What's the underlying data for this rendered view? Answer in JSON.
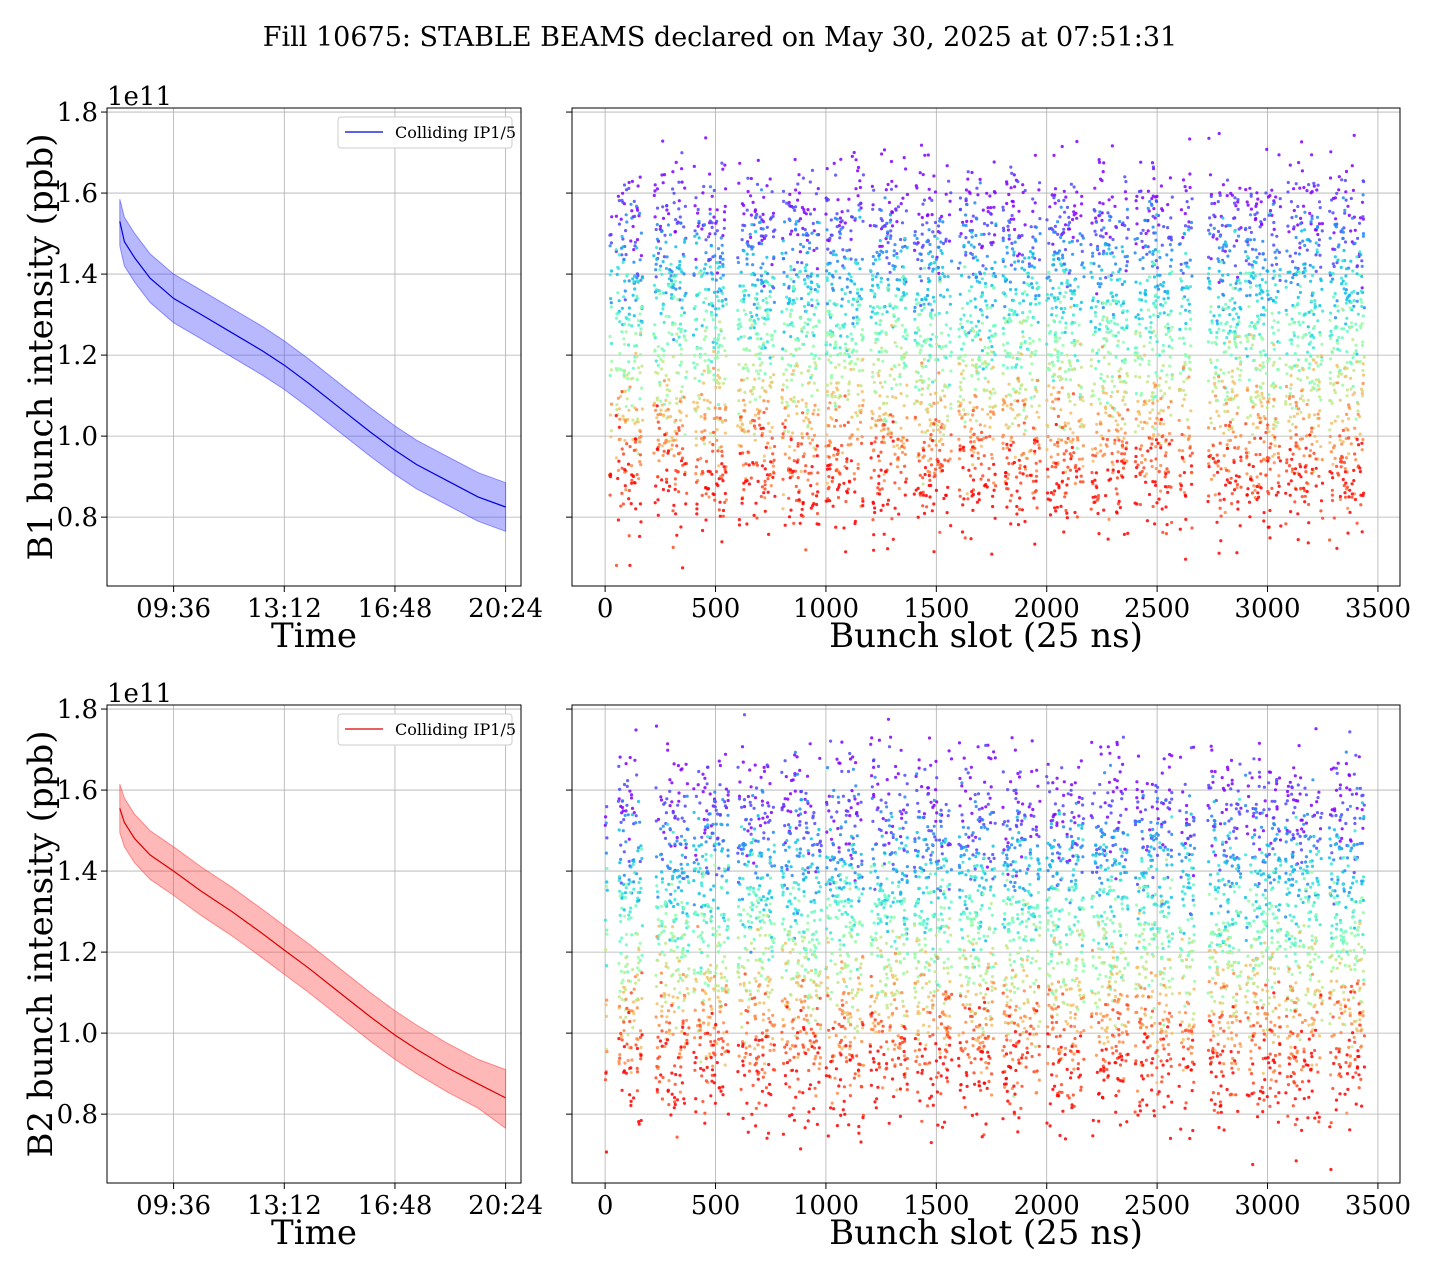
{
  "title": "Fill 10675: STABLE BEAMS declared on May 30, 2025 at 07:51:31",
  "chart_data": [
    {
      "type": "line",
      "panel": "B1 intensity vs time",
      "xlabel": "Time",
      "ylabel": "B1 bunch intensity (ppb)",
      "y_offset_label": "1e11",
      "x_ticks": [
        "09:36",
        "13:12",
        "16:48",
        "20:24"
      ],
      "y_ticks": [
        "0.8",
        "1.0",
        "1.2",
        "1.4",
        "1.6",
        "1.8"
      ],
      "xlim": [
        "07:26",
        "20:54"
      ],
      "ylim": [
        0.63,
        1.81
      ],
      "grid": true,
      "legend": {
        "position": "top-right",
        "entries": [
          "Colliding IP1/5"
        ]
      },
      "color": "#0000dd",
      "band_color": "#3333ff",
      "series": [
        {
          "name": "Colliding IP1/5",
          "x": [
            "07:51",
            "08:00",
            "08:20",
            "08:50",
            "09:36",
            "10:30",
            "11:30",
            "12:30",
            "13:12",
            "14:00",
            "15:00",
            "16:00",
            "16:48",
            "17:30",
            "18:30",
            "19:30",
            "20:24"
          ],
          "y": [
            1.53,
            1.48,
            1.44,
            1.39,
            1.34,
            1.3,
            1.255,
            1.21,
            1.175,
            1.13,
            1.07,
            1.01,
            0.965,
            0.93,
            0.89,
            0.85,
            0.825
          ],
          "y_lower": [
            1.47,
            1.42,
            1.38,
            1.33,
            1.28,
            1.24,
            1.195,
            1.15,
            1.115,
            1.07,
            1.01,
            0.95,
            0.905,
            0.87,
            0.83,
            0.79,
            0.765
          ],
          "y_upper": [
            1.585,
            1.54,
            1.5,
            1.45,
            1.4,
            1.36,
            1.315,
            1.27,
            1.235,
            1.19,
            1.13,
            1.07,
            1.025,
            0.99,
            0.95,
            0.91,
            0.885
          ]
        }
      ]
    },
    {
      "type": "scatter",
      "panel": "B1 intensity vs bunch slot",
      "xlabel": "Bunch slot (25 ns)",
      "x_ticks": [
        "0",
        "500",
        "1000",
        "1500",
        "2000",
        "2500",
        "3000",
        "3500"
      ],
      "xlim": [
        -150,
        3600
      ],
      "ylim": [
        0.63,
        1.81
      ],
      "grid": true,
      "colormap": "rainbow (purple = start of fill, red = end of fill)",
      "trains_x_start": [
        20,
        50,
        220,
        400,
        600,
        800,
        1000,
        1200,
        1400,
        1600,
        1800,
        2000,
        2200,
        2400,
        2600,
        2730,
        2900,
        3080,
        3280
      ],
      "trains_x_end": [
        30,
        170,
        370,
        550,
        770,
        970,
        1170,
        1370,
        1570,
        1770,
        1970,
        2170,
        2370,
        2570,
        2660,
        2880,
        3060,
        3250,
        3440
      ],
      "y_initial": 1.57,
      "y_final": 0.86,
      "y_spread": 0.07
    },
    {
      "type": "line",
      "panel": "B2 intensity vs time",
      "xlabel": "Time",
      "ylabel": "B2 bunch intensity (ppb)",
      "y_offset_label": "1e11",
      "x_ticks": [
        "09:36",
        "13:12",
        "16:48",
        "20:24"
      ],
      "y_ticks": [
        "0.8",
        "1.0",
        "1.2",
        "1.4",
        "1.6",
        "1.8"
      ],
      "xlim": [
        "07:26",
        "20:54"
      ],
      "ylim": [
        0.63,
        1.81
      ],
      "grid": true,
      "legend": {
        "position": "top-right",
        "entries": [
          "Colliding IP1/5"
        ]
      },
      "color": "#dd0000",
      "band_color": "#ff3333",
      "series": [
        {
          "name": "Colliding IP1/5",
          "x": [
            "07:51",
            "08:00",
            "08:20",
            "08:50",
            "09:36",
            "10:30",
            "11:30",
            "12:30",
            "13:12",
            "14:00",
            "15:00",
            "16:00",
            "16:48",
            "17:30",
            "18:30",
            "19:30",
            "20:24"
          ],
          "y": [
            1.555,
            1.52,
            1.48,
            1.44,
            1.4,
            1.35,
            1.3,
            1.245,
            1.205,
            1.16,
            1.1,
            1.04,
            0.995,
            0.96,
            0.915,
            0.875,
            0.84
          ],
          "y_lower": [
            1.495,
            1.46,
            1.42,
            1.38,
            1.34,
            1.29,
            1.24,
            1.185,
            1.145,
            1.1,
            1.04,
            0.98,
            0.935,
            0.9,
            0.855,
            0.815,
            0.765
          ],
          "y_upper": [
            1.615,
            1.58,
            1.54,
            1.5,
            1.46,
            1.41,
            1.36,
            1.305,
            1.265,
            1.22,
            1.16,
            1.1,
            1.055,
            1.02,
            0.975,
            0.935,
            0.91
          ]
        }
      ]
    },
    {
      "type": "scatter",
      "panel": "B2 intensity vs bunch slot",
      "xlabel": "Bunch slot (25 ns)",
      "x_ticks": [
        "0",
        "500",
        "1000",
        "1500",
        "2000",
        "2500",
        "3000",
        "3500"
      ],
      "xlim": [
        -150,
        3600
      ],
      "ylim": [
        0.63,
        1.81
      ],
      "grid": true,
      "colormap": "rainbow (purple = start of fill, red = end of fill)",
      "trains_x_start": [
        0,
        60,
        230,
        400,
        600,
        800,
        1000,
        1200,
        1400,
        1600,
        1800,
        2000,
        2200,
        2400,
        2600,
        2730,
        2900,
        3080,
        3280
      ],
      "trains_x_end": [
        10,
        170,
        380,
        560,
        770,
        980,
        1170,
        1370,
        1570,
        1770,
        1970,
        2170,
        2370,
        2570,
        2670,
        2880,
        3060,
        3250,
        3440
      ],
      "y_initial": 1.58,
      "y_final": 0.89,
      "y_spread": 0.075
    }
  ]
}
